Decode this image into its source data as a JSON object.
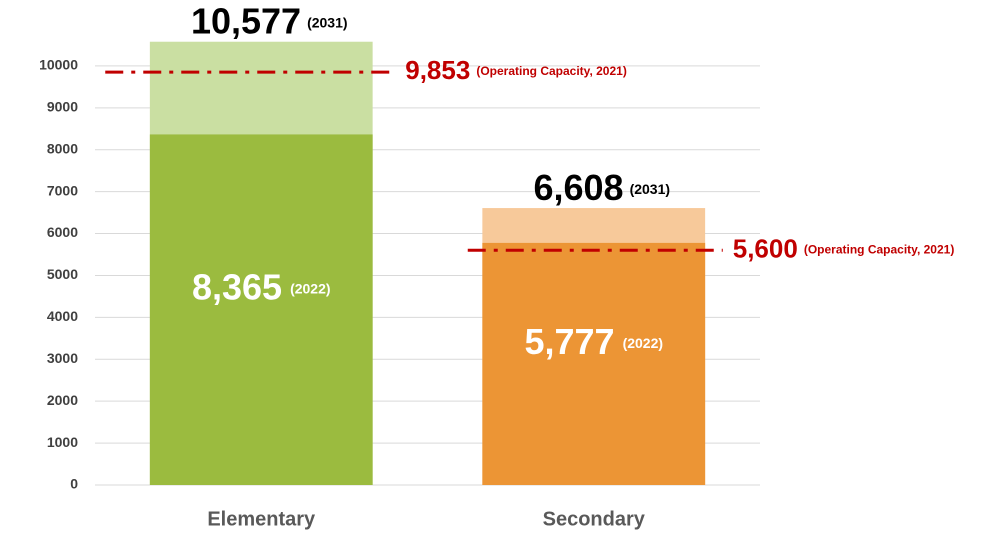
{
  "chart_data": {
    "type": "overlap_bar",
    "categories": [
      "Elementary",
      "Secondary"
    ],
    "series": [
      {
        "name": "(2031)",
        "colors": [
          "#cadfa2",
          "#f7c99a"
        ],
        "values": [
          10577,
          6608
        ],
        "value_labels": [
          "10,577",
          "6,608"
        ]
      },
      {
        "name": "(2022)",
        "colors": [
          "#9bbb3f",
          "#ec9535"
        ],
        "values": [
          8365,
          5777
        ],
        "value_labels": [
          "8,365",
          "5,777"
        ]
      }
    ],
    "reference_lines": [
      {
        "value": 9853,
        "label": "9,853",
        "note": "(Operating Capacity, 2021)",
        "color": "#c00000"
      },
      {
        "value": 5600,
        "label": "5,600",
        "note": "(Operating Capacity, 2021)",
        "color": "#c00000"
      }
    ],
    "ylim": [
      0,
      11000
    ],
    "yticks": [
      0,
      1000,
      2000,
      3000,
      4000,
      5000,
      6000,
      7000,
      8000,
      9000,
      10000
    ],
    "grid": true
  }
}
